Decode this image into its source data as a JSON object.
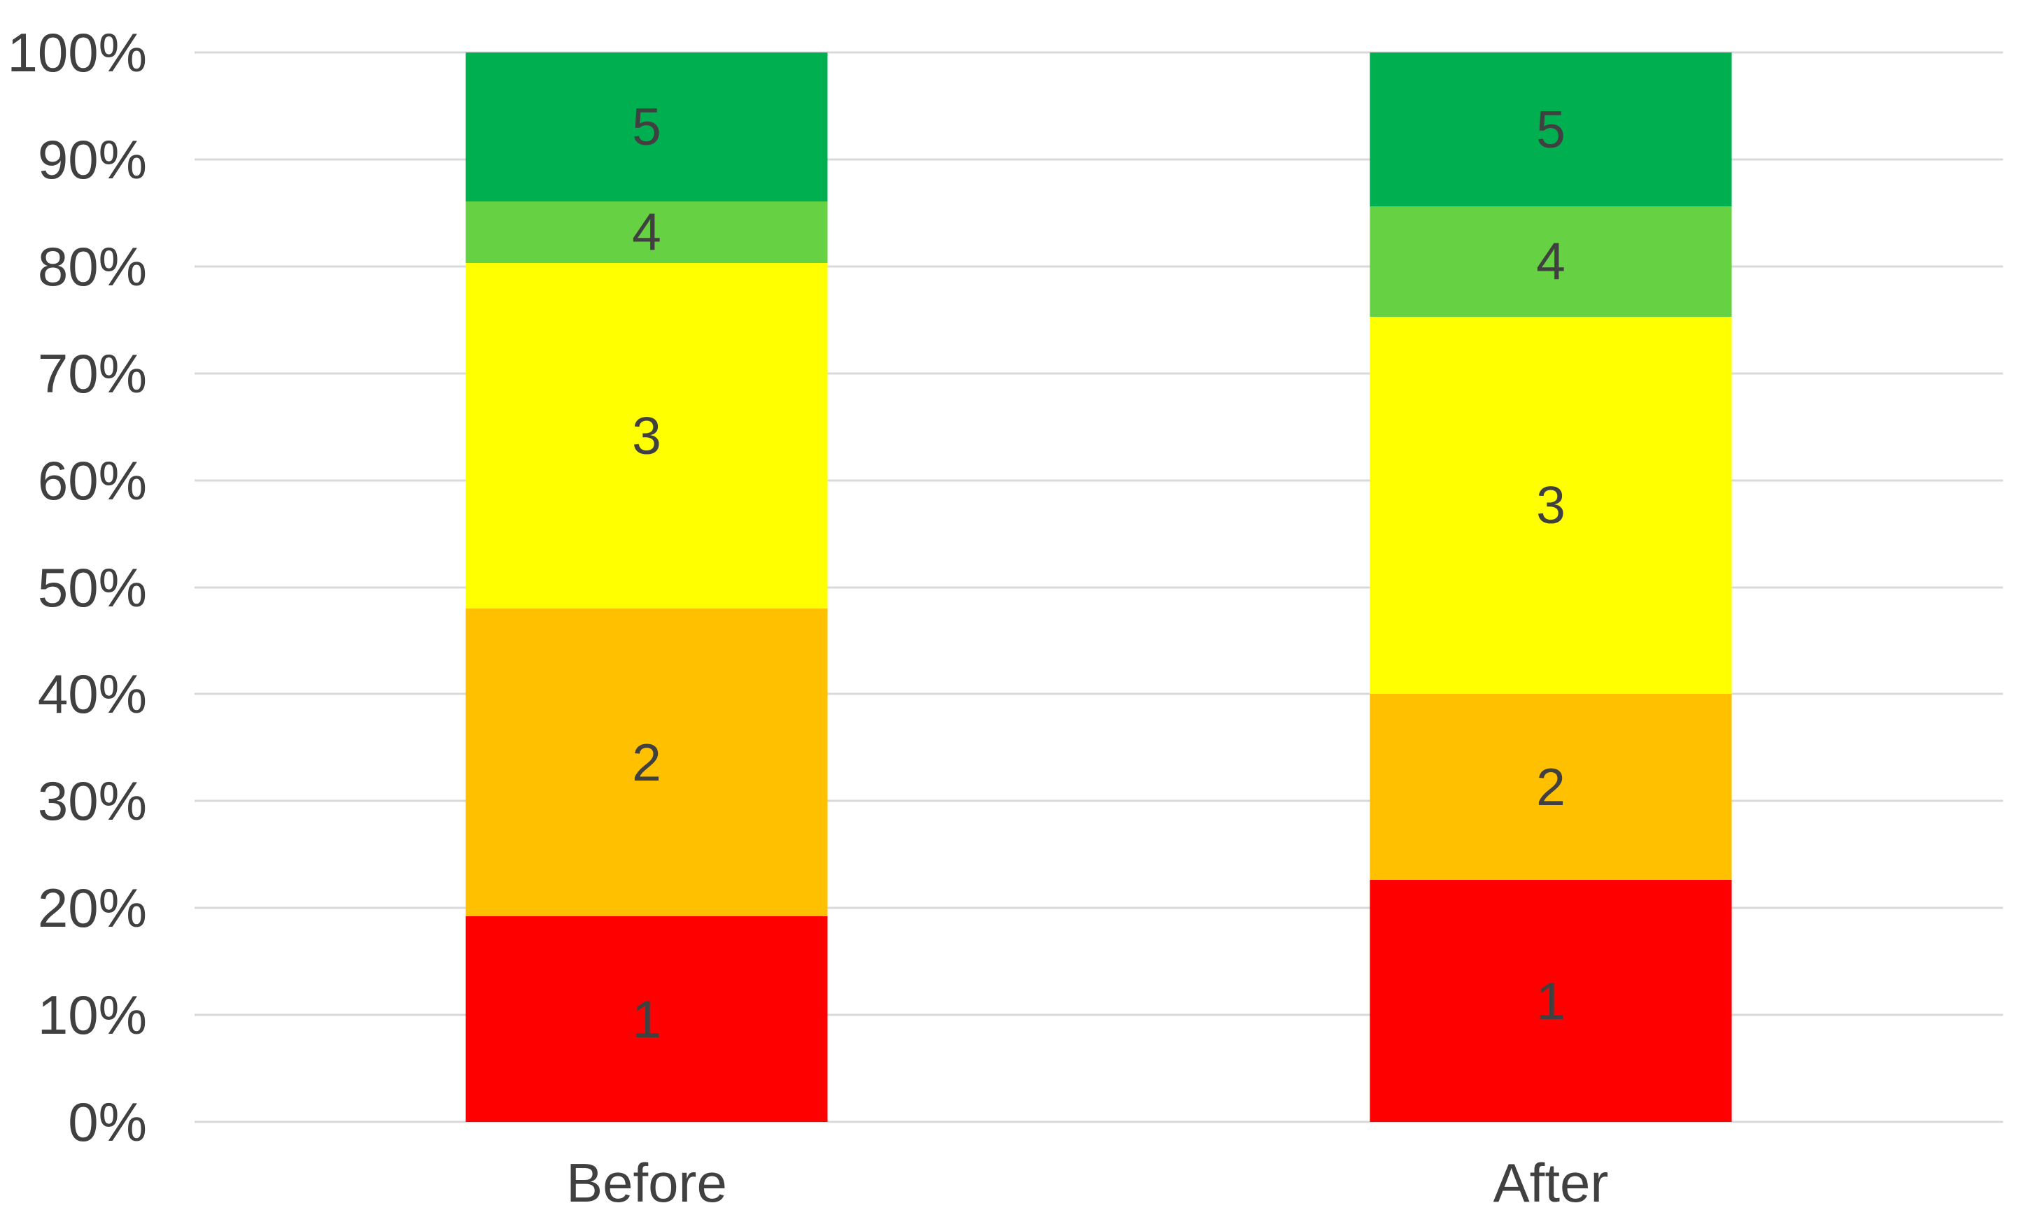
{
  "figure": {
    "background": "#FFFFFF",
    "text_color": "#404040",
    "gridline_color": "#D9D9D9"
  },
  "chart_data": {
    "type": "bar",
    "subtype": "stacked-100-percent-column",
    "title": "",
    "xlabel": "",
    "ylabel": "",
    "grid": true,
    "legend": false,
    "categories": [
      "Before",
      "After"
    ],
    "series": [
      {
        "name": "1",
        "color": "#FF0000",
        "values": [
          19.2,
          22.6
        ]
      },
      {
        "name": "2",
        "color": "#FFC000",
        "values": [
          28.8,
          17.4
        ]
      },
      {
        "name": "3",
        "color": "#FFFF00",
        "values": [
          32.3,
          35.3
        ]
      },
      {
        "name": "4",
        "color": "#66D243",
        "values": [
          5.8,
          10.3
        ]
      },
      {
        "name": "5",
        "color": "#00B050",
        "values": [
          13.9,
          14.4
        ]
      }
    ],
    "y_axis": {
      "min": 0,
      "max": 100,
      "tick_step": 10,
      "tick_labels": [
        "0%",
        "10%",
        "20%",
        "30%",
        "40%",
        "50%",
        "60%",
        "70%",
        "80%",
        "90%",
        "100%"
      ]
    },
    "data_labels": "series name centered in each segment"
  }
}
